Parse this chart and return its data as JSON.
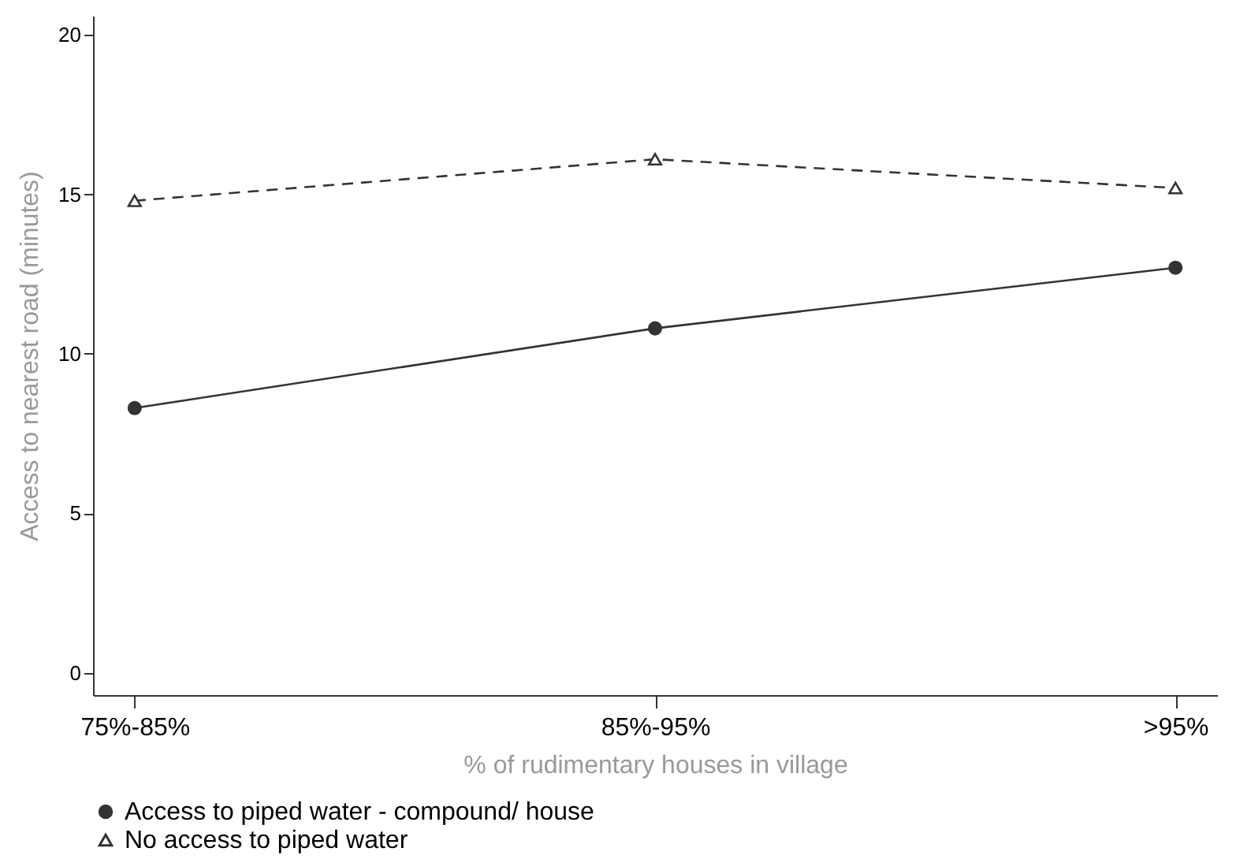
{
  "chart_data": {
    "type": "line",
    "xlabel": "% of rudimentary houses in village",
    "ylabel": "Access to nearest road (minutes)",
    "categories": [
      "75%-85%",
      "85%-95%",
      ">95%"
    ],
    "series": [
      {
        "name": "Access to piped water - compound/ house",
        "color": "#333333",
        "values": [
          8.3,
          10.8,
          12.7
        ],
        "marker": "circle",
        "line_style": "solid"
      },
      {
        "name": "No access to piped water",
        "color": "#333333",
        "values": [
          14.8,
          16.1,
          15.2
        ],
        "marker": "triangle",
        "line_style": "dashed"
      }
    ],
    "ylim": [
      -0.7,
      20.6
    ],
    "yticks": [
      0,
      5,
      10,
      15,
      20
    ],
    "grid": false,
    "legend": "bottom"
  }
}
